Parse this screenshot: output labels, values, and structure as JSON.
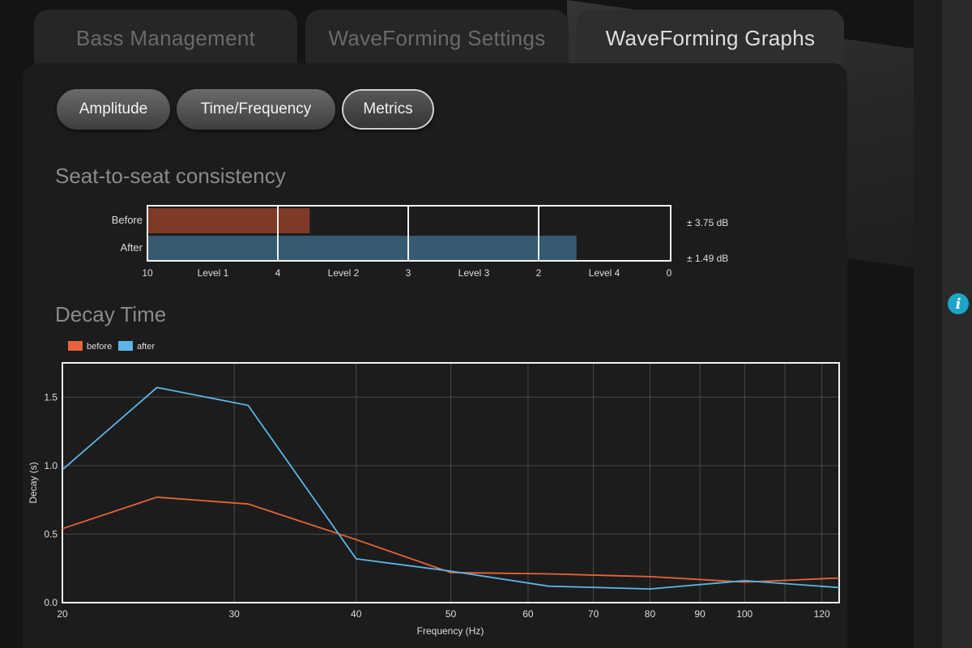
{
  "tabs": [
    {
      "label": "Bass Management",
      "active": false
    },
    {
      "label": "WaveForming Settings",
      "active": false
    },
    {
      "label": "WaveForming Graphs",
      "active": true
    }
  ],
  "subtabs": [
    {
      "label": "Amplitude",
      "active": false
    },
    {
      "label": "Time/Frequency",
      "active": false
    },
    {
      "label": "Metrics",
      "active": true
    }
  ],
  "info_icon": "info-icon",
  "colors": {
    "before": "#e8623a",
    "after": "#5bb5e6",
    "before_bar": "#7e3a26",
    "after_bar": "#365a72",
    "info": "#1aa6c4"
  },
  "seat": {
    "title": "Seat-to-seat consistency",
    "rows": [
      {
        "label": "Before",
        "value_text": "± 3.75 dB"
      },
      {
        "label": "After",
        "value_text": "± 1.49 dB"
      }
    ],
    "ticks": [
      "10",
      "4",
      "3",
      "2",
      "0"
    ],
    "levels": [
      "Level 1",
      "Level 2",
      "Level 3",
      "Level 4"
    ]
  },
  "decay": {
    "title": "Decay Time",
    "legend": [
      {
        "label": "before"
      },
      {
        "label": "after"
      }
    ],
    "xlabel": "Frequency (Hz)",
    "ylabel": "Decay (s)",
    "xticks": [
      "20",
      "30",
      "40",
      "50",
      "60",
      "70",
      "80",
      "90",
      "100",
      "120"
    ],
    "yticks": [
      "0.0",
      "0.5",
      "1.0",
      "1.5"
    ]
  },
  "chart_data": [
    {
      "type": "bar",
      "title": "Seat-to-seat consistency",
      "categories": [
        "Before",
        "After"
      ],
      "level_boundaries": [
        10,
        4,
        3,
        2,
        0
      ],
      "level_labels": [
        "Level 1",
        "Level 2",
        "Level 3",
        "Level 4"
      ],
      "bar_extent_fraction": [
        0.31,
        0.82
      ],
      "value_labels": [
        "± 3.75 dB",
        "± 1.49 dB"
      ]
    },
    {
      "type": "line",
      "title": "Decay Time",
      "xlabel": "Frequency (Hz)",
      "ylabel": "Decay (s)",
      "xscale": "log",
      "xlim": [
        20,
        125
      ],
      "ylim": [
        0,
        1.75
      ],
      "grid": true,
      "legend_position": "top-left",
      "series": [
        {
          "name": "before",
          "x": [
            20,
            25,
            31,
            40,
            50,
            63,
            80,
            100,
            125
          ],
          "y": [
            0.54,
            0.77,
            0.72,
            0.46,
            0.22,
            0.21,
            0.19,
            0.15,
            0.18
          ]
        },
        {
          "name": "after",
          "x": [
            20,
            25,
            31,
            40,
            50,
            63,
            80,
            100,
            125
          ],
          "y": [
            0.97,
            1.57,
            1.44,
            0.32,
            0.23,
            0.12,
            0.1,
            0.16,
            0.11
          ]
        }
      ]
    }
  ]
}
